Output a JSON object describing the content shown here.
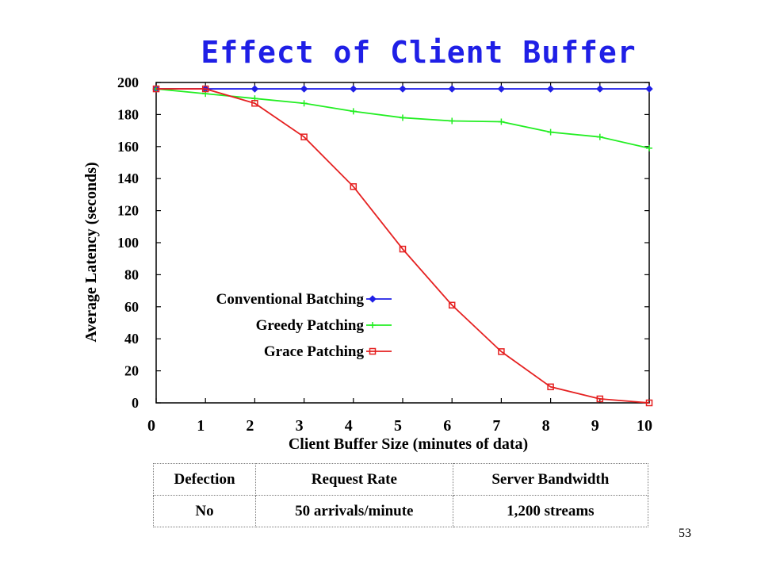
{
  "slide": {
    "number": "53"
  },
  "chart_data": {
    "type": "line",
    "title": "Effect of Client Buffer",
    "xlabel": "Client Buffer Size (minutes of data)",
    "ylabel": "Average Latency (seconds)",
    "xlim": [
      0,
      10
    ],
    "ylim": [
      0,
      200
    ],
    "x_ticks": [
      "0",
      "1",
      "2",
      "3",
      "4",
      "5",
      "6",
      "7",
      "8",
      "9",
      "10"
    ],
    "y_ticks": [
      "0",
      "20",
      "40",
      "60",
      "80",
      "100",
      "120",
      "140",
      "160",
      "180",
      "200"
    ],
    "grid": false,
    "legend_position": "lower-left, inside plot",
    "x": [
      0,
      1,
      2,
      3,
      4,
      5,
      6,
      7,
      8,
      9,
      10
    ],
    "series": [
      {
        "name": "Conventional Batching",
        "color": "#1f1fe6",
        "marker": "diamond",
        "values": [
          196,
          196,
          196,
          196,
          196,
          196,
          196,
          196,
          196,
          196,
          196
        ]
      },
      {
        "name": "Greedy Patching",
        "color": "#22ee22",
        "marker": "plus",
        "values": [
          196,
          193,
          190,
          187,
          182,
          178,
          176,
          175.5,
          169,
          166,
          159
        ]
      },
      {
        "name": "Grace Patching",
        "color": "#e52020",
        "marker": "square",
        "values": [
          196,
          196,
          187,
          166,
          135,
          96,
          61,
          32,
          10,
          2.5,
          0
        ]
      }
    ]
  },
  "params_table": {
    "headers": [
      "Defection",
      "Request Rate",
      "Server Bandwidth"
    ],
    "rows": [
      [
        "No",
        "50 arrivals/minute",
        "1,200 streams"
      ]
    ]
  }
}
